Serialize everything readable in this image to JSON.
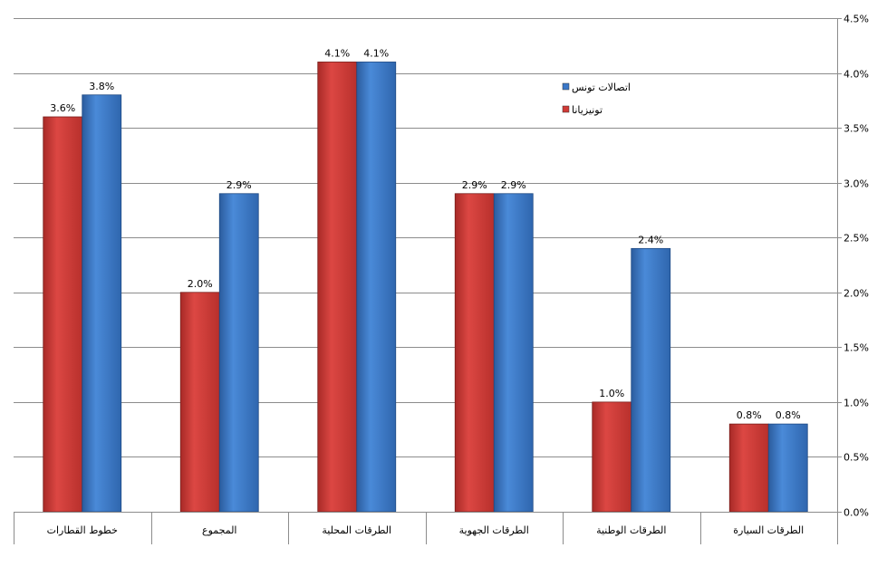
{
  "chart_data": {
    "type": "bar",
    "categories": [
      "خطوط القطارات",
      "المجموع",
      "الطرقات المحلية",
      "الطرقات الجهوية",
      "الطرقات الوطنية",
      "الطرقات السيارة"
    ],
    "series": [
      {
        "name": "تونيزيانا",
        "values": [
          3.6,
          2.0,
          4.1,
          2.9,
          1.0,
          0.8
        ],
        "color": "#d03a36",
        "data_labels": [
          "3.6%",
          "2.0%",
          "4.1%",
          "2.9%",
          "1.0%",
          "0.8%"
        ]
      },
      {
        "name": "اتصالات تونس",
        "values": [
          3.8,
          2.9,
          4.1,
          2.9,
          2.4,
          0.8
        ],
        "color": "#3a78c8",
        "data_labels": [
          "3.8%",
          "2.9%",
          "4.1%",
          "2.9%",
          "2.4%",
          "0.8%"
        ]
      }
    ],
    "y_ticks": [
      "0.0%",
      "0.5%",
      "1.0%",
      "1.5%",
      "2.0%",
      "2.5%",
      "3.0%",
      "3.5%",
      "4.0%",
      "4.5%"
    ],
    "ylim": [
      0,
      4.5
    ],
    "y_axis_position": "right",
    "grid": true,
    "legend_position": "upper-center-right",
    "legend_order": [
      "اتصالات تونس",
      "تونيزيانا"
    ]
  }
}
